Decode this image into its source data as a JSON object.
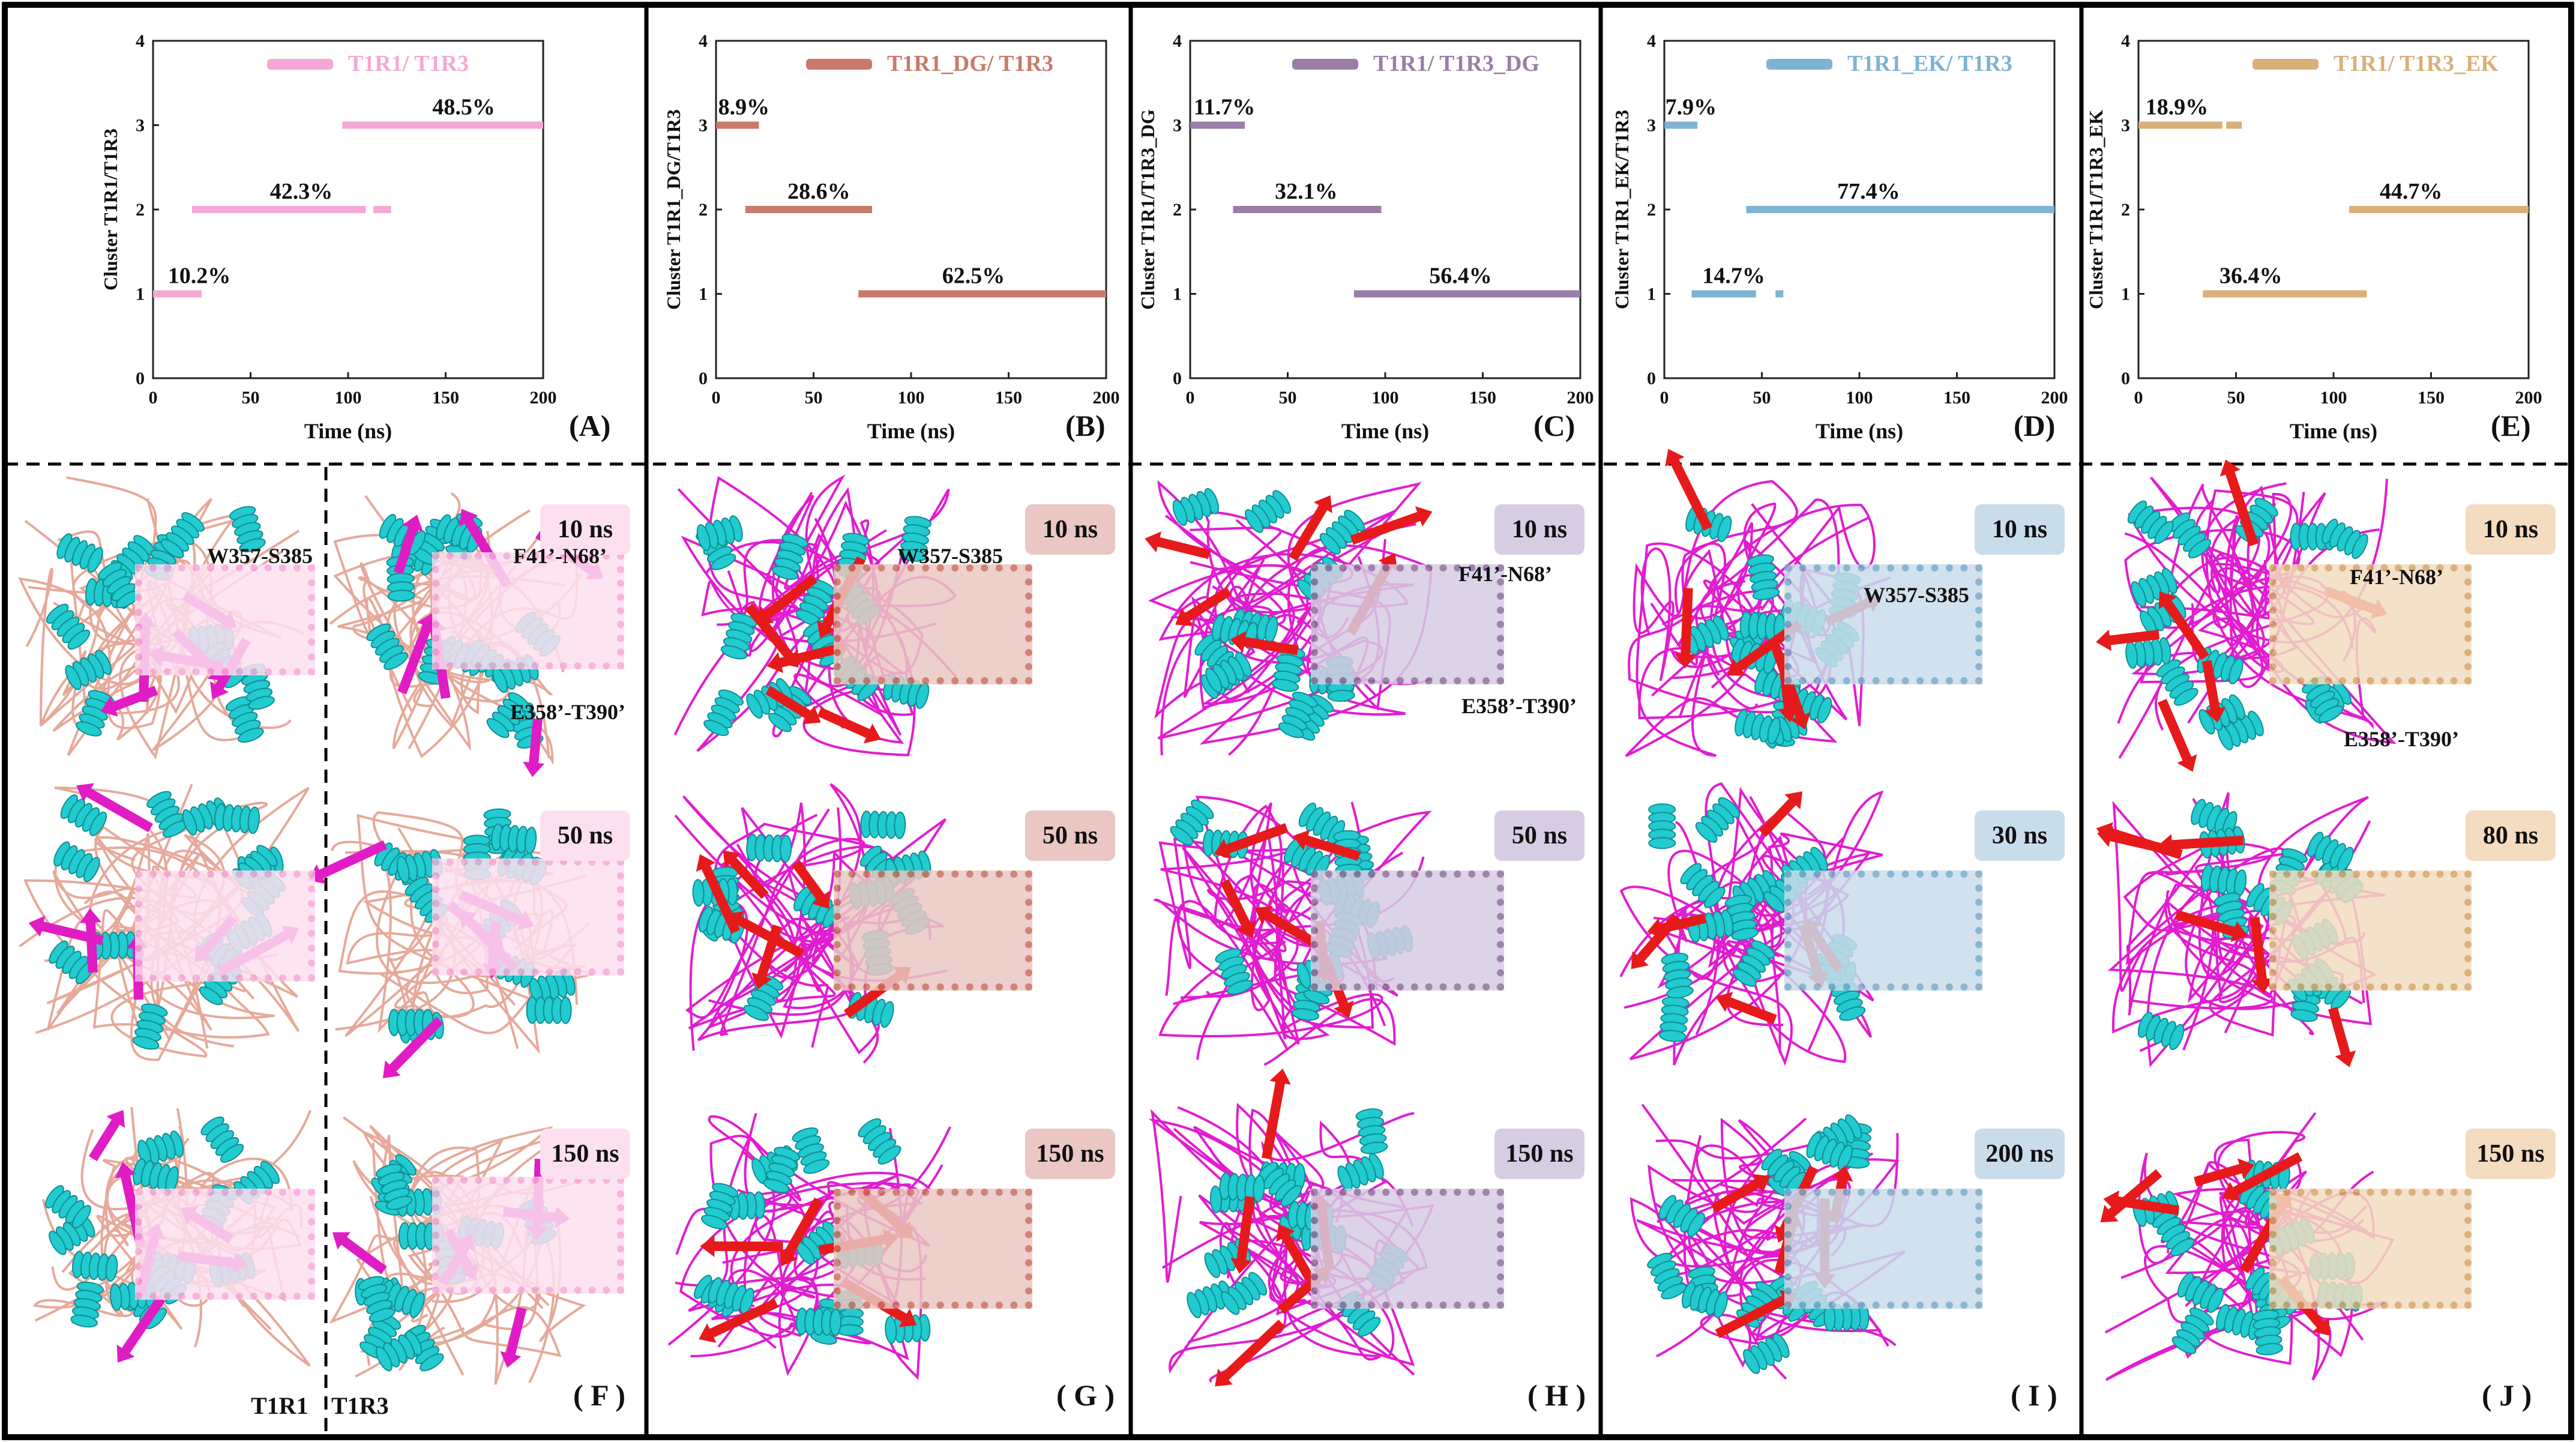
{
  "charts": [
    {
      "panel": "(A)",
      "type": "bar",
      "title": "T1R1/ T1R3",
      "ylabel": "Cluster  T1R1/T1R3",
      "xlabel": "Time (ns)",
      "xlim": [
        0,
        200
      ],
      "ylim": [
        0,
        4
      ],
      "xticks": [
        0,
        50,
        100,
        150,
        200
      ],
      "yticks": [
        0,
        1,
        2,
        3,
        4
      ],
      "color": "#f4a8d6",
      "segments": [
        {
          "cluster": 1,
          "ranges": [
            [
              0,
              25
            ]
          ],
          "label": "10.2%"
        },
        {
          "cluster": 2,
          "ranges": [
            [
              20,
              109
            ],
            [
              113,
              122
            ]
          ],
          "label": "42.3%"
        },
        {
          "cluster": 3,
          "ranges": [
            [
              97,
              200
            ]
          ],
          "label": "48.5%"
        }
      ]
    },
    {
      "panel": "(B)",
      "type": "bar",
      "title": "T1R1_DG/ T1R3",
      "ylabel": "Cluster T1R1_DG/T1R3",
      "xlabel": "Time (ns)",
      "xlim": [
        0,
        200
      ],
      "ylim": [
        0,
        4
      ],
      "xticks": [
        0,
        50,
        100,
        150,
        200
      ],
      "yticks": [
        0,
        1,
        2,
        3,
        4
      ],
      "color": "#c97a6d",
      "segments": [
        {
          "cluster": 3,
          "ranges": [
            [
              0,
              22
            ]
          ],
          "label": "8.9%"
        },
        {
          "cluster": 2,
          "ranges": [
            [
              15,
              80
            ]
          ],
          "label": "28.6%"
        },
        {
          "cluster": 1,
          "ranges": [
            [
              73,
              200
            ]
          ],
          "label": "62.5%"
        }
      ]
    },
    {
      "panel": "(C)",
      "type": "bar",
      "title": "T1R1/ T1R3_DG",
      "ylabel": "Cluster T1R1/T1R3_DG",
      "xlabel": "Time (ns)",
      "xlim": [
        0,
        200
      ],
      "ylim": [
        0,
        4
      ],
      "xticks": [
        0,
        50,
        100,
        150,
        200
      ],
      "yticks": [
        0,
        1,
        2,
        3,
        4
      ],
      "color": "#9a7ea8",
      "segments": [
        {
          "cluster": 3,
          "ranges": [
            [
              0,
              28
            ]
          ],
          "label": "11.7%"
        },
        {
          "cluster": 2,
          "ranges": [
            [
              22,
              98
            ]
          ],
          "label": "32.1%"
        },
        {
          "cluster": 1,
          "ranges": [
            [
              84,
              200
            ]
          ],
          "label": "56.4%"
        }
      ]
    },
    {
      "panel": "(D)",
      "type": "bar",
      "title": "T1R1_EK/ T1R3",
      "ylabel": "Cluster T1R1_EK/T1R3",
      "xlabel": "Time (ns)",
      "xlim": [
        0,
        200
      ],
      "ylim": [
        0,
        4
      ],
      "xticks": [
        0,
        50,
        100,
        150,
        200
      ],
      "yticks": [
        0,
        1,
        2,
        3,
        4
      ],
      "color": "#7fb3d3",
      "segments": [
        {
          "cluster": 3,
          "ranges": [
            [
              0,
              17
            ]
          ],
          "label": "7.9%"
        },
        {
          "cluster": 1,
          "ranges": [
            [
              14,
              47
            ],
            [
              57,
              61
            ]
          ],
          "label": "14.7%"
        },
        {
          "cluster": 2,
          "ranges": [
            [
              42,
              200
            ]
          ],
          "label": "77.4%"
        }
      ]
    },
    {
      "panel": "(E)",
      "type": "bar",
      "title": "T1R1/ T1R3_EK",
      "ylabel": "Cluster T1R1/T1R3_EK",
      "xlabel": "Time (ns)",
      "xlim": [
        0,
        200
      ],
      "ylim": [
        0,
        4
      ],
      "xticks": [
        0,
        50,
        100,
        150,
        200
      ],
      "yticks": [
        0,
        1,
        2,
        3,
        4
      ],
      "color": "#d9b07a",
      "segments": [
        {
          "cluster": 3,
          "ranges": [
            [
              0,
              43
            ],
            [
              45,
              53
            ]
          ],
          "label": "18.9%"
        },
        {
          "cluster": 1,
          "ranges": [
            [
              33,
              117
            ]
          ],
          "label": "36.4%"
        },
        {
          "cluster": 2,
          "ranges": [
            [
              108,
              200
            ]
          ],
          "label": "44.7%"
        }
      ]
    }
  ],
  "structure_panels": {
    "F": {
      "label": "( F )",
      "times": [
        "10 ns",
        "50 ns",
        "150 ns"
      ],
      "annotations": [
        "W357-S385",
        "F41’-N68’",
        "E358’-T390’"
      ],
      "subunits": [
        "T1R1",
        "T1R3"
      ],
      "color": "#fde0ef",
      "box": "#f6a9d8",
      "sheet": "#e01cc4",
      "loop": "#e6a99a"
    },
    "G": {
      "label": "( G )",
      "times": [
        "10 ns",
        "50 ns",
        "150 ns"
      ],
      "annotations": [
        "W357-S385"
      ],
      "color": "#eac7c2",
      "box": "#c96f5e",
      "sheet": "#e61a1a",
      "loop": "#e11dd0"
    },
    "H": {
      "label": "( H )",
      "times": [
        "10 ns",
        "50 ns",
        "150 ns"
      ],
      "annotations": [
        "F41’-N68’",
        "E358’-T390’"
      ],
      "color": "#d7cde2",
      "box": "#8e6e9c",
      "sheet": "#e61a1a",
      "loop": "#e11dd0"
    },
    "I": {
      "label": "( I )",
      "times": [
        "10 ns",
        "30 ns",
        "200 ns"
      ],
      "annotations": [
        "W357-S385"
      ],
      "color": "#c9dcea",
      "box": "#79a9c9",
      "sheet": "#e61a1a",
      "loop": "#e11dd0"
    },
    "J": {
      "label": "( J )",
      "times": [
        "10 ns",
        "80 ns",
        "150 ns"
      ],
      "annotations": [
        "F41’-N68’",
        "E358’-T390’"
      ],
      "color": "#f3dcc0",
      "box": "#d5a467",
      "sheet": "#e61a1a",
      "loop": "#e11dd0"
    }
  },
  "helix_color": "#22cbcf"
}
